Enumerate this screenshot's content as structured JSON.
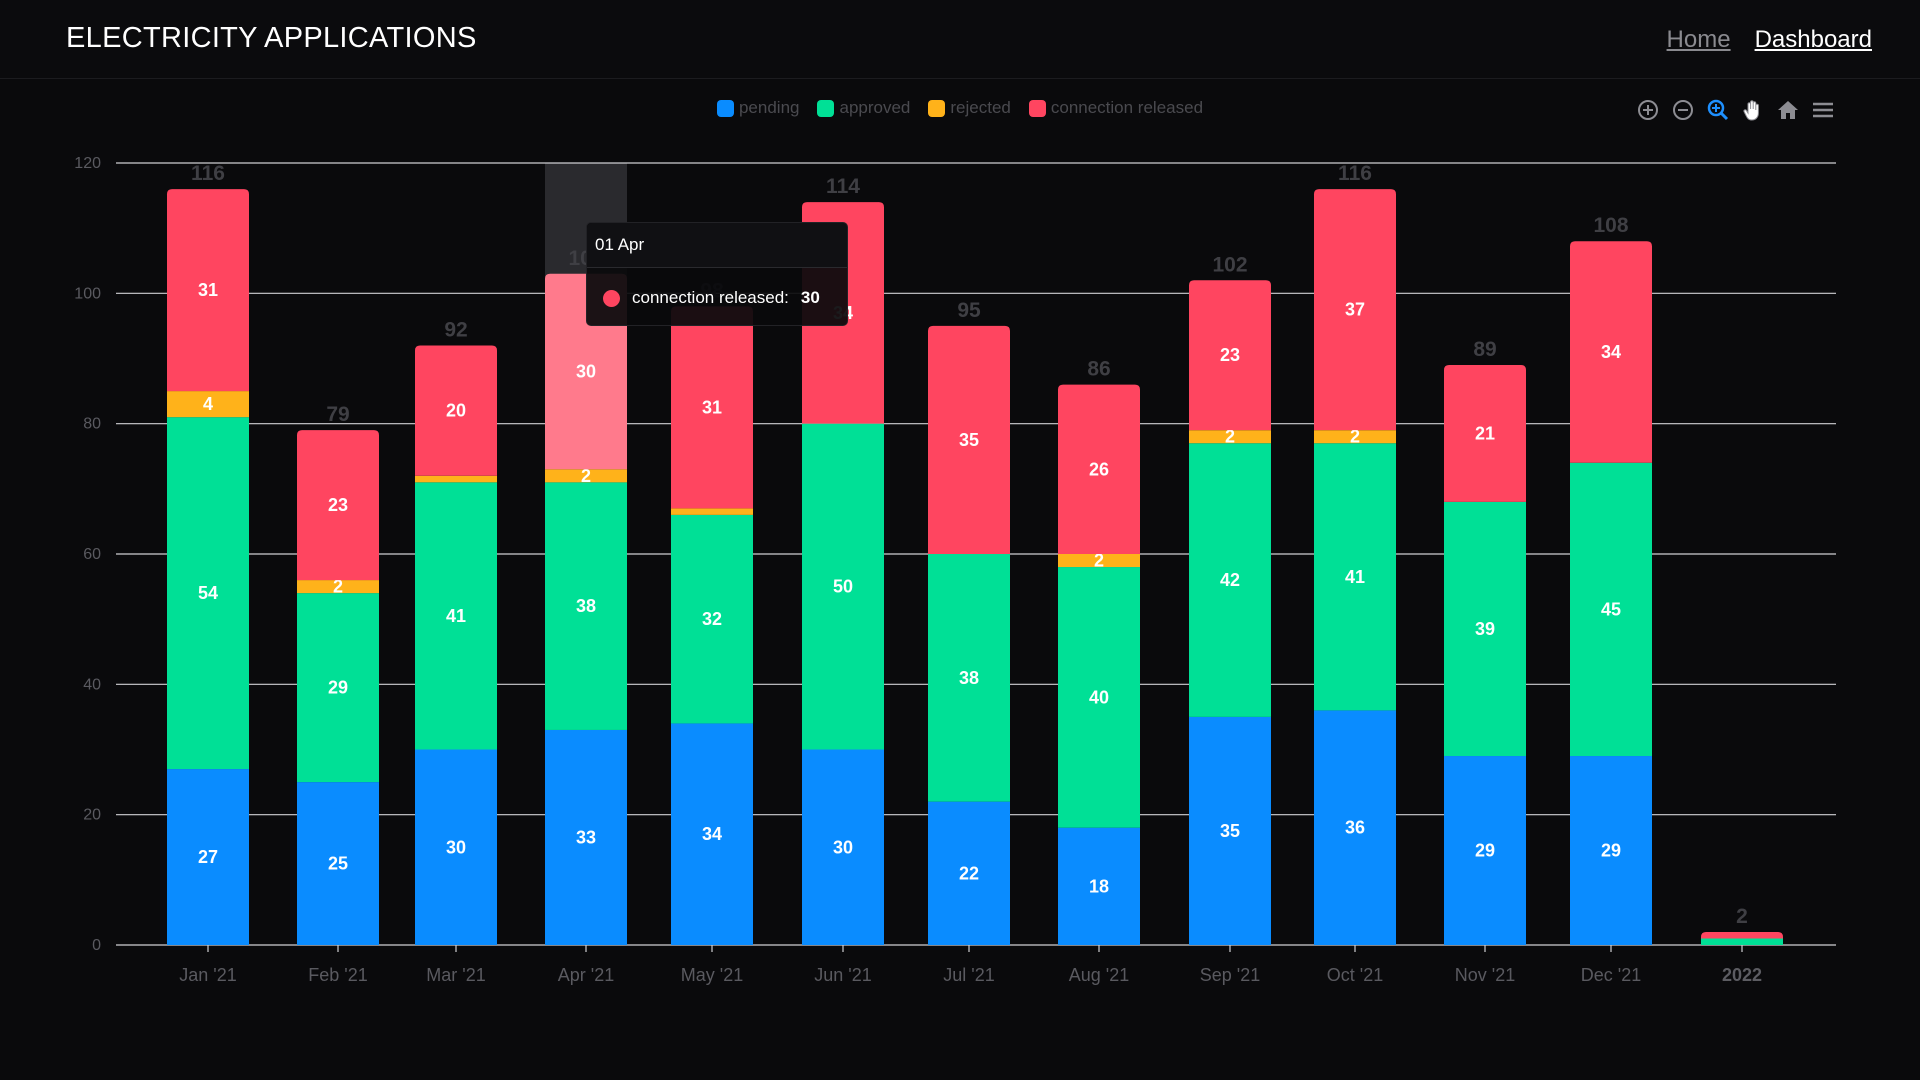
{
  "header": {
    "title": "ELECTRICITY APPLICATIONS",
    "nav": {
      "home": "Home",
      "dashboard": "Dashboard"
    }
  },
  "toolbar": {
    "icons": [
      "zoom-in-icon",
      "zoom-out-icon",
      "selection-zoom-icon",
      "pan-icon",
      "reset-home-icon",
      "menu-icon"
    ]
  },
  "colors": {
    "pending": "#0a8cff",
    "approved": "#00e096",
    "rejected": "#ffb21a",
    "connection_released": "#ff4560",
    "connection_released_highlight": "#ff7a8c"
  },
  "tooltip": {
    "title": "01 Apr",
    "series": "connection released",
    "value": "30"
  },
  "chart_data": {
    "type": "bar",
    "stacked": true,
    "categories": [
      "Jan '21",
      "Feb '21",
      "Mar '21",
      "Apr '21",
      "May '21",
      "Jun '21",
      "Jul '21",
      "Aug '21",
      "Sep '21",
      "Oct '21",
      "Nov '21",
      "Dec '21",
      "2022"
    ],
    "series": [
      {
        "name": "pending",
        "values": [
          27,
          25,
          30,
          33,
          34,
          30,
          22,
          18,
          35,
          36,
          29,
          29,
          0
        ]
      },
      {
        "name": "approved",
        "values": [
          54,
          29,
          41,
          38,
          32,
          50,
          38,
          40,
          42,
          41,
          39,
          45,
          1
        ]
      },
      {
        "name": "rejected",
        "values": [
          4,
          2,
          1,
          2,
          1,
          0,
          0,
          2,
          2,
          2,
          0,
          0,
          0
        ]
      },
      {
        "name": "connection released",
        "values": [
          31,
          23,
          20,
          30,
          31,
          34,
          35,
          26,
          23,
          37,
          21,
          34,
          1
        ]
      }
    ],
    "totals": [
      116,
      79,
      92,
      103,
      98,
      114,
      95,
      86,
      102,
      116,
      89,
      108,
      2
    ],
    "y_ticks": [
      0,
      20,
      40,
      60,
      80,
      100,
      120
    ],
    "ylim": [
      0,
      120
    ],
    "grid": true,
    "legend_position": "top-center",
    "highlighted_category": "Apr '21"
  }
}
